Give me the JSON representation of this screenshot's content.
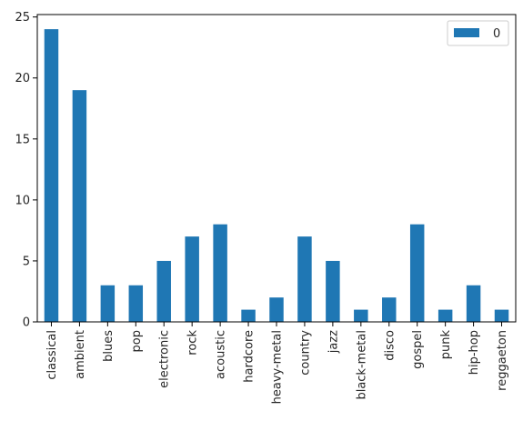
{
  "chart_data": {
    "type": "bar",
    "title": "",
    "xlabel": "",
    "ylabel": "",
    "categories": [
      "classical",
      "ambient",
      "blues",
      "pop",
      "electronic",
      "rock",
      "acoustic",
      "hardcore",
      "heavy-metal",
      "country",
      "jazz",
      "black-metal",
      "disco",
      "gospel",
      "punk",
      "hip-hop",
      "reggaeton"
    ],
    "series": [
      {
        "name": "0",
        "values": [
          24,
          19,
          3,
          3,
          5,
          7,
          8,
          1,
          2,
          7,
          5,
          1,
          2,
          8,
          1,
          3,
          1
        ]
      }
    ],
    "ylim": [
      0,
      25.2
    ],
    "yticks": [
      0,
      5,
      10,
      15,
      20,
      25
    ],
    "grid": false,
    "legend_position": "top-right",
    "bar_color": "#1f77b4"
  }
}
